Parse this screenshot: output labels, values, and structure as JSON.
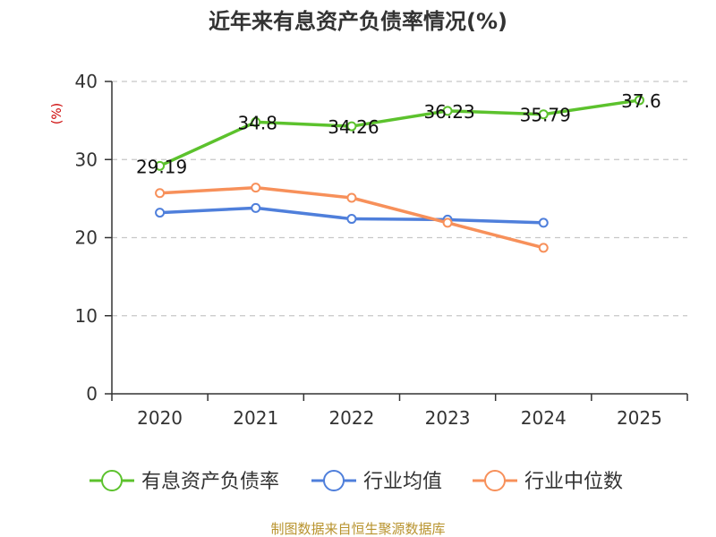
{
  "chart_data": {
    "type": "line",
    "title": "近年来有息资产负债率情况(%)",
    "unit_label": "(%)",
    "categories": [
      "2020",
      "2021",
      "2022",
      "2023",
      "2024",
      "2025"
    ],
    "ylim": [
      0,
      40
    ],
    "yticks": [
      0,
      10,
      20,
      30,
      40
    ],
    "grid": true,
    "legend_position": "bottom",
    "series": [
      {
        "name": "有息资产负债率",
        "color": "#5cc22d",
        "values": [
          29.19,
          34.8,
          34.26,
          36.23,
          35.79,
          37.6
        ],
        "labels": [
          "29.19",
          "34.8",
          "34.26",
          "36.23",
          "35.79",
          "37.6"
        ]
      },
      {
        "name": "行业均值",
        "color": "#4f7fdb",
        "values": [
          23.2,
          23.8,
          22.4,
          22.3,
          21.9,
          null
        ]
      },
      {
        "name": "行业中位数",
        "color": "#f7905a",
        "values": [
          25.7,
          26.4,
          25.1,
          21.9,
          18.7,
          null
        ]
      }
    ],
    "source": "制图数据来自恒生聚源数据库"
  }
}
